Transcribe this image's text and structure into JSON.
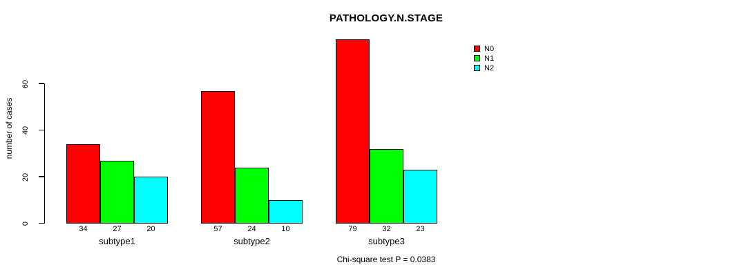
{
  "chart_data": {
    "type": "bar",
    "title": "PATHOLOGY.N.STAGE",
    "ylabel": "number of cases",
    "xlabel": "",
    "categories": [
      "subtype1",
      "subtype2",
      "subtype3"
    ],
    "series": [
      {
        "name": "N0",
        "color": "#ff0000",
        "values": [
          34,
          57,
          79
        ]
      },
      {
        "name": "N1",
        "color": "#00ff00",
        "values": [
          27,
          24,
          32
        ]
      },
      {
        "name": "N2",
        "color": "#00ffff",
        "values": [
          20,
          10,
          23
        ]
      }
    ],
    "yticks": [
      0,
      20,
      40,
      60
    ],
    "ylim": [
      0,
      79
    ],
    "grid": false,
    "legend_position": "topright",
    "bar_values_shown_below_bars": true,
    "annotation": "Chi-square test P = 0.0383",
    "axis_color": "#000000",
    "text_color": "#000000",
    "background_color": "#ffffff"
  }
}
